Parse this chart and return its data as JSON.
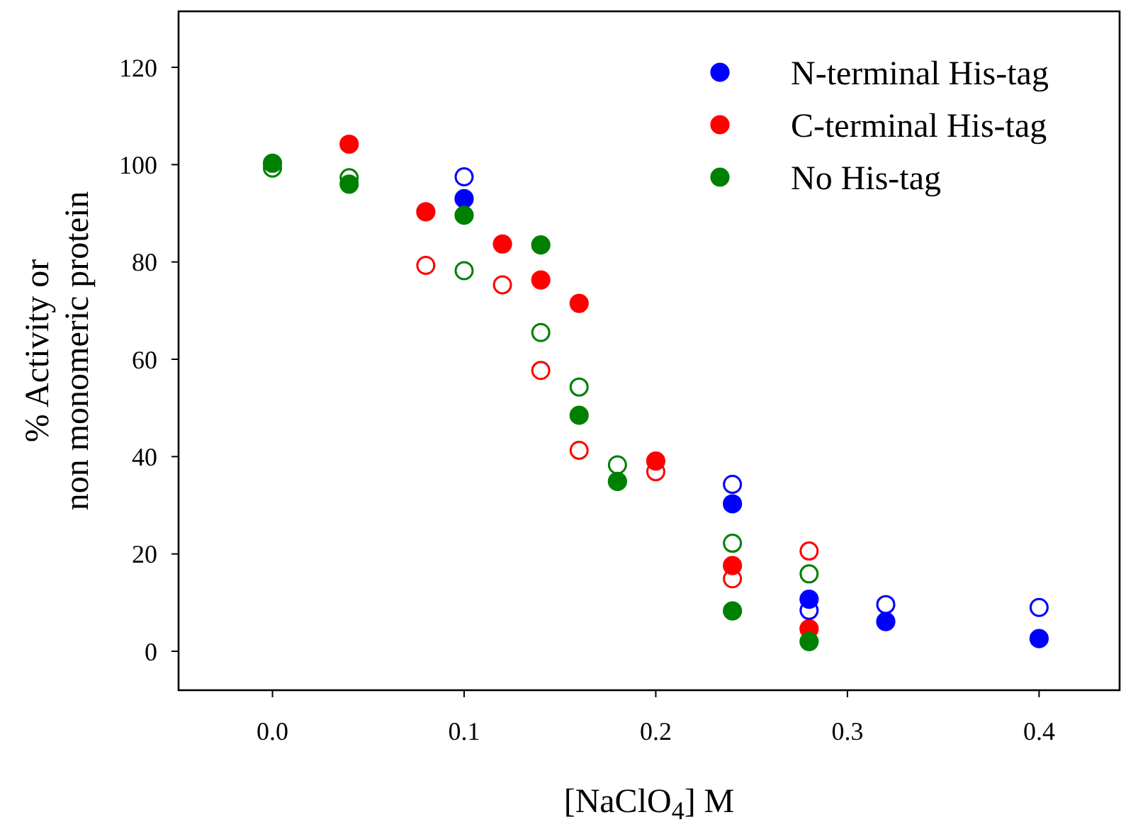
{
  "chart_data": {
    "type": "scatter",
    "xlabel": "[NaClO$_{4}$] M",
    "ylabel": "% Activity or\nnon monomeric protein",
    "xlim": [
      -0.049,
      0.442
    ],
    "ylim": [
      -8,
      131.5
    ],
    "xticks": [
      {
        "value": 0,
        "label": "0.0"
      },
      0.1,
      0.2,
      0.3,
      0.4
    ],
    "yticks": [
      0,
      20,
      40,
      60,
      80,
      100,
      120
    ],
    "grid": false,
    "legend": "top right",
    "marker": "circle",
    "series": [
      {
        "name": "N-terminal His-tag",
        "color": "#0000ff",
        "x": [
          0.1,
          0.24,
          0.28,
          0.32,
          0.4
        ],
        "values": [
          93,
          30.3,
          10.7,
          6.1,
          2.6
        ]
      },
      {
        "name": "C-terminal His-tag",
        "color": "#ff0000",
        "x": [
          0.04,
          0.08,
          0.12,
          0.14,
          0.16,
          0.2,
          0.24,
          0.28
        ],
        "values": [
          104.2,
          90.3,
          83.7,
          76.3,
          71.5,
          39.1,
          17.6,
          4.6
        ]
      },
      {
        "name": "No His-tag",
        "color": "#008000",
        "x": [
          0,
          0.04,
          0.1,
          0.14,
          0.16,
          0.18,
          0.24,
          0.28
        ],
        "values": [
          100.3,
          96,
          89.6,
          83.5,
          48.5,
          34.9,
          8.3,
          2
        ]
      },
      {
        "color": "#0000ff",
        "x": [
          0.1,
          0.24,
          0.28,
          0.32,
          0.4
        ],
        "values": [
          97.5,
          34.3,
          8.4,
          9.6,
          9
        ]
      },
      {
        "color": "#ff0000",
        "x": [
          0.08,
          0.12,
          0.14,
          0.16,
          0.2,
          0.24,
          0.28
        ],
        "values": [
          79.3,
          75.3,
          57.7,
          41.3,
          36.9,
          14.9,
          20.6
        ]
      },
      {
        "color": "#008000",
        "x": [
          0,
          0.04,
          0.1,
          0.14,
          0.16,
          0.18,
          0.24,
          0.28
        ],
        "values": [
          99.3,
          97.3,
          78.2,
          65.5,
          54.3,
          38.3,
          22.2,
          15.9
        ]
      }
    ]
  }
}
